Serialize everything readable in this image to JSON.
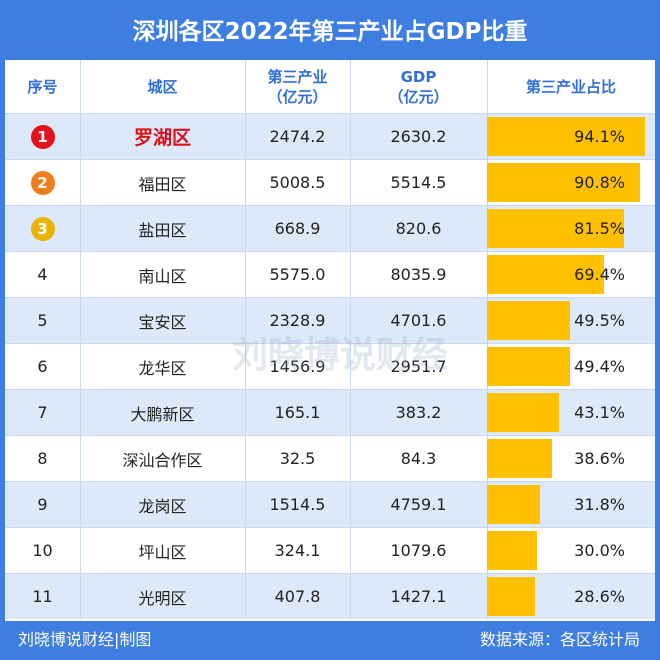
{
  "title": "深圳各区2022年第三产业占GDP比重",
  "watermark": "刘晓博说财经",
  "footer": {
    "left": "刘晓博说财经|制图",
    "right": "数据来源：各区统计局"
  },
  "columns": {
    "rank": "序号",
    "city": "城区",
    "tertiary": "第三产业\n（亿元）",
    "gdp": "GDP\n（亿元）",
    "share": "第三产业占比"
  },
  "colors": {
    "background": "#3d7ee0",
    "bar": "#ffc000",
    "medal_gold": "#e8b400",
    "medal_silver": "#f07d1a",
    "medal_red": "#e3121b",
    "highlight_text": "#e0101a"
  },
  "chart_data": {
    "type": "table",
    "title": "深圳各区2022年第三产业占GDP比重",
    "rows": [
      {
        "rank": "1",
        "city": "罗湖区",
        "tertiary": "2474.2",
        "gdp": "2630.2",
        "share_label": "94.1%",
        "share": 94.1,
        "medal": "red"
      },
      {
        "rank": "2",
        "city": "福田区",
        "tertiary": "5008.5",
        "gdp": "5514.5",
        "share_label": "90.8%",
        "share": 90.8,
        "medal": "orange"
      },
      {
        "rank": "3",
        "city": "盐田区",
        "tertiary": "668.9",
        "gdp": "820.6",
        "share_label": "81.5%",
        "share": 81.5,
        "medal": "gold"
      },
      {
        "rank": "4",
        "city": "南山区",
        "tertiary": "5575.0",
        "gdp": "8035.9",
        "share_label": "69.4%",
        "share": 69.4
      },
      {
        "rank": "5",
        "city": "宝安区",
        "tertiary": "2328.9",
        "gdp": "4701.6",
        "share_label": "49.5%",
        "share": 49.5
      },
      {
        "rank": "6",
        "city": "龙华区",
        "tertiary": "1456.9",
        "gdp": "2951.7",
        "share_label": "49.4%",
        "share": 49.4
      },
      {
        "rank": "7",
        "city": "大鹏新区",
        "tertiary": "165.1",
        "gdp": "383.2",
        "share_label": "43.1%",
        "share": 43.1
      },
      {
        "rank": "8",
        "city": "深汕合作区",
        "tertiary": "32.5",
        "gdp": "84.3",
        "share_label": "38.6%",
        "share": 38.6
      },
      {
        "rank": "9",
        "city": "龙岗区",
        "tertiary": "1514.5",
        "gdp": "4759.1",
        "share_label": "31.8%",
        "share": 31.8
      },
      {
        "rank": "10",
        "city": "坪山区",
        "tertiary": "324.1",
        "gdp": "1079.6",
        "share_label": "30.0%",
        "share": 30.0
      },
      {
        "rank": "11",
        "city": "光明区",
        "tertiary": "407.8",
        "gdp": "1427.1",
        "share_label": "28.6%",
        "share": 28.6
      }
    ]
  }
}
